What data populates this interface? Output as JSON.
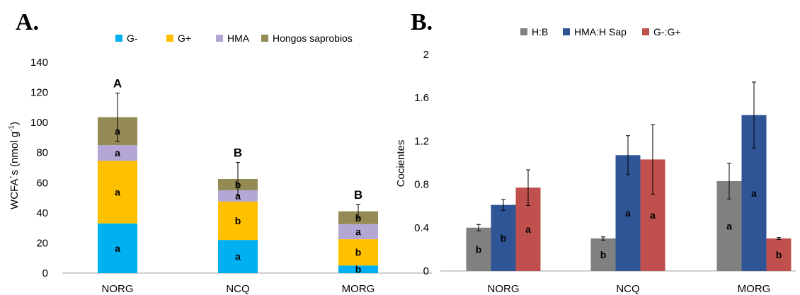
{
  "chart_data": [
    {
      "type": "bar",
      "stacked": true,
      "panel_label": "A.",
      "title": "",
      "ylabel": "WCFA´s (nmol g-1)",
      "ylabel_main": "WCFA´s (nmol g",
      "ylabel_sup": "-1",
      "ylabel_end": ")",
      "xlabel": "",
      "ylim": [
        0,
        140
      ],
      "yticks": [
        0,
        20,
        40,
        60,
        80,
        100,
        120,
        140
      ],
      "categories": [
        "NORG",
        "NCQ",
        "MORG"
      ],
      "legend_position": "top",
      "grid": false,
      "series": [
        {
          "name": "G-",
          "color": "#00b0f0",
          "values": [
            33,
            22,
            5
          ],
          "labels": [
            "a",
            "a",
            "b"
          ]
        },
        {
          "name": "G+",
          "color": "#ffc000",
          "values": [
            41.5,
            25.5,
            17.5
          ],
          "labels": [
            "a",
            "b",
            "b"
          ]
        },
        {
          "name": "HMA",
          "color": "#b4a7d6",
          "values": [
            10.5,
            7.5,
            10
          ],
          "labels": [
            "a",
            "a",
            "a"
          ]
        },
        {
          "name": "Hongos saprobios",
          "color": "#948a54",
          "values": [
            18.5,
            7.5,
            8.5
          ],
          "labels": [
            "a",
            "b",
            "b"
          ]
        }
      ],
      "totals": [
        103.5,
        62.5,
        41
      ],
      "total_errors": [
        16,
        11,
        4.5
      ],
      "group_letters": [
        "A",
        "B",
        "B"
      ]
    },
    {
      "type": "bar",
      "stacked": false,
      "panel_label": "B.",
      "title": "",
      "ylabel": "Cocientes",
      "xlabel": "",
      "ylim": [
        0,
        2
      ],
      "yticks": [
        "0",
        "0.4",
        "0.8",
        "1.2",
        "1.6",
        "2"
      ],
      "categories": [
        "NORG",
        "NCQ",
        "MORG"
      ],
      "legend_position": "top",
      "grid": false,
      "series": [
        {
          "name": "H:B",
          "color": "#808080",
          "values": [
            0.4,
            0.3,
            0.83
          ],
          "errors": [
            0.03,
            0.015,
            0.165
          ],
          "labels": [
            "b",
            "b",
            "a"
          ]
        },
        {
          "name": "HMA:H Sap",
          "color": "#2f5597",
          "values": [
            0.61,
            1.07,
            1.44
          ],
          "errors": [
            0.05,
            0.18,
            0.305
          ],
          "labels": [
            "b",
            "a",
            "a"
          ]
        },
        {
          "name": "G-:G+",
          "color": "#c0504d",
          "values": [
            0.77,
            1.03,
            0.3
          ],
          "errors": [
            0.165,
            0.32,
            0.01
          ],
          "labels": [
            "a",
            "a",
            "b"
          ]
        }
      ]
    }
  ]
}
